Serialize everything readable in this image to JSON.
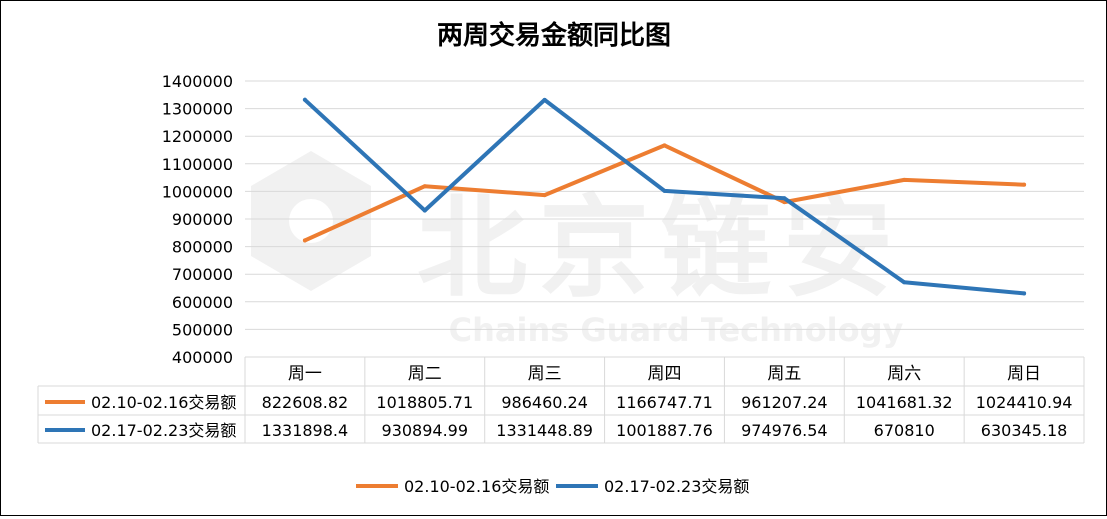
{
  "chart_data": {
    "type": "line",
    "title": "两周交易金额同比图",
    "categories": [
      "周一",
      "周二",
      "周三",
      "周四",
      "周五",
      "周六",
      "周日"
    ],
    "ylim": [
      400000,
      1400000
    ],
    "ytick_labels": [
      "400000",
      "500000",
      "600000",
      "700000",
      "800000",
      "900000",
      "1000000",
      "1100000",
      "1200000",
      "1300000",
      "1400000"
    ],
    "grid": true,
    "legend_position": "bottom",
    "series": [
      {
        "name": "02.10-02.16交易额",
        "color": "#ED7D31",
        "values": [
          822608.82,
          1018805.71,
          986460.24,
          1166747.71,
          961207.24,
          1041681.32,
          1024410.94
        ],
        "value_labels": [
          "822608.82",
          "1018805.71",
          "986460.24",
          "1166747.71",
          "961207.24",
          "1041681.32",
          "1024410.94"
        ]
      },
      {
        "name": "02.17-02.23交易额",
        "color": "#2E75B6",
        "values": [
          1331898.4,
          930894.99,
          1331448.89,
          1001887.76,
          974976.54,
          670810,
          630345.18
        ],
        "value_labels": [
          "1331898.4",
          "930894.99",
          "1331448.89",
          "1001887.76",
          "974976.54",
          "670810",
          "630345.18"
        ]
      }
    ],
    "watermark": {
      "text_cn": "北京链安",
      "text_en": "Chains Guard Technology",
      "color": "#f0f0f0"
    }
  }
}
